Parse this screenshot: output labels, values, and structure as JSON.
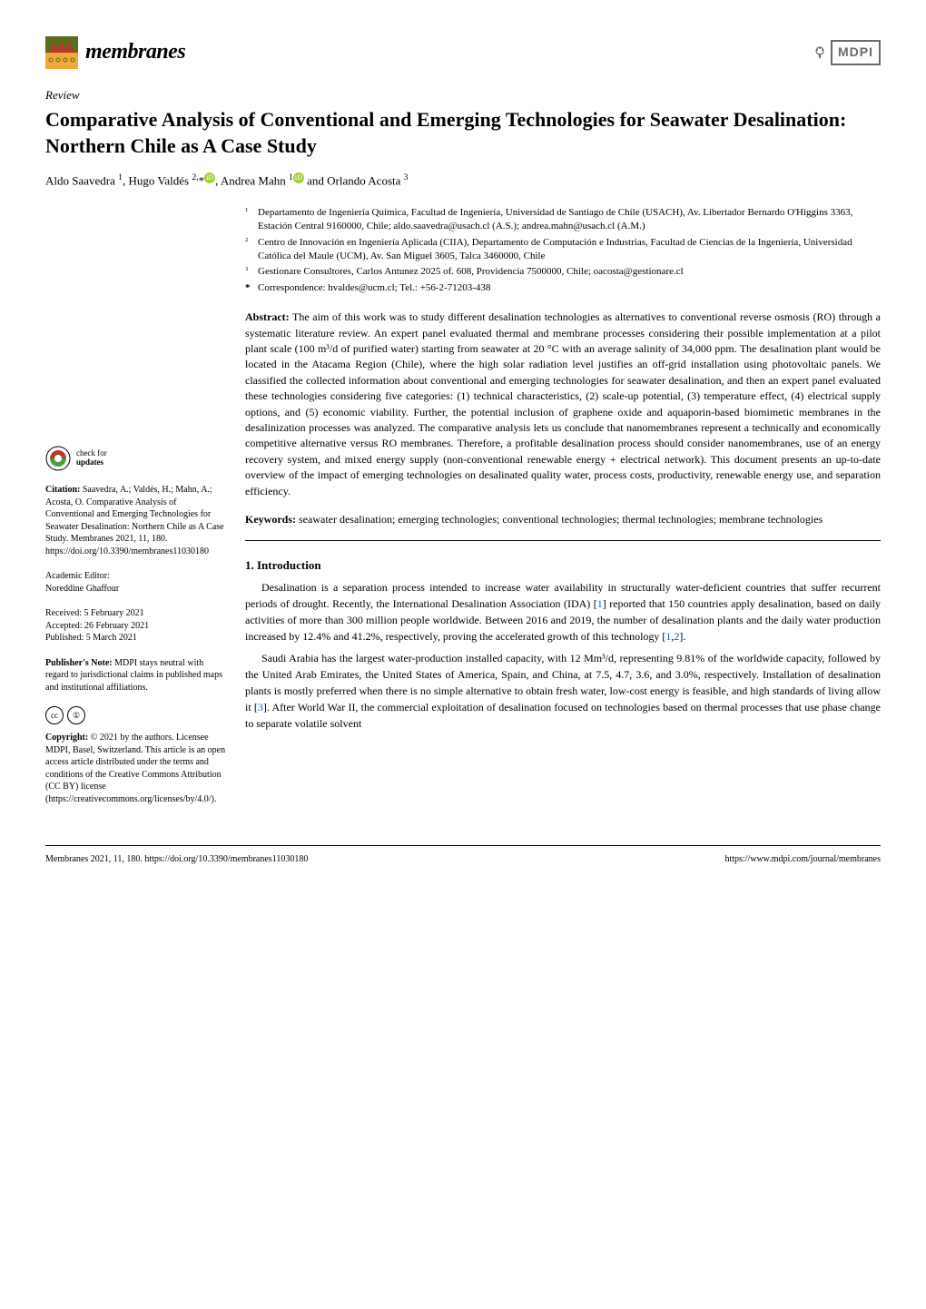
{
  "journal": {
    "name": "membranes"
  },
  "publisher": {
    "name": "MDPI"
  },
  "article_type": "Review",
  "title": "Comparative Analysis of Conventional and Emerging Technologies for Seawater Desalination: Northern Chile as A Case Study",
  "authors_html": "Aldo Saavedra <sup>1</sup>, Hugo Valdés <sup>2,</sup>*<span class='orcid'>iD</span>, Andrea Mahn <sup>1</sup><span class='orcid'>iD</span> and Orlando Acosta <sup>3</sup>",
  "affiliations": [
    {
      "num": "1",
      "text": "Departamento de Ingeniería Química, Facultad de Ingeniería, Universidad de Santiago de Chile (USACH), Av. Libertador Bernardo O'Higgins 3363, Estación Central 9160000, Chile; aldo.saavedra@usach.cl (A.S.); andrea.mahn@usach.cl (A.M.)"
    },
    {
      "num": "2",
      "text": "Centro de Innovación en Ingeniería Aplicada (CIIA), Departamento de Computación e Industrias, Facultad de Ciencias de la Ingeniería, Universidad Católica del Maule (UCM), Av. San Miguel 3605, Talca 3460000, Chile"
    },
    {
      "num": "3",
      "text": "Gestionare Consultores, Carlos Antunez 2025 of. 608, Providencia 7500000, Chile; oacosta@gestionare.cl"
    }
  ],
  "correspondence": {
    "star": "*",
    "text": "Correspondence: hvaldes@ucm.cl; Tel.: +56-2-71203-438"
  },
  "abstract": {
    "label": "Abstract:",
    "text": "The aim of this work was to study different desalination technologies as alternatives to conventional reverse osmosis (RO) through a systematic literature review. An expert panel evaluated thermal and membrane processes considering their possible implementation at a pilot plant scale (100 m³/d of purified water) starting from seawater at 20 °C with an average salinity of 34,000 ppm. The desalination plant would be located in the Atacama Region (Chile), where the high solar radiation level justifies an off-grid installation using photovoltaic panels. We classified the collected information about conventional and emerging technologies for seawater desalination, and then an expert panel evaluated these technologies considering five categories: (1) technical characteristics, (2) scale-up potential, (3) temperature effect, (4) electrical supply options, and (5) economic viability. Further, the potential inclusion of graphene oxide and aquaporin-based biomimetic membranes in the desalinization processes was analyzed. The comparative analysis lets us conclude that nanomembranes represent a technically and economically competitive alternative versus RO membranes. Therefore, a profitable desalination process should consider nanomembranes, use of an energy recovery system, and mixed energy supply (non-conventional renewable energy + electrical network). This document presents an up-to-date overview of the impact of emerging technologies on desalinated quality water, process costs, productivity, renewable energy use, and separation efficiency."
  },
  "keywords": {
    "label": "Keywords:",
    "text": "seawater desalination; emerging technologies; conventional technologies; thermal technologies; membrane technologies"
  },
  "section1": {
    "heading": "1. Introduction",
    "p1": "Desalination is a separation process intended to increase water availability in structurally water-deficient countries that suffer recurrent periods of drought. Recently, the International Desalination Association (IDA) [1] reported that 150 countries apply desalination, based on daily activities of more than 300 million people worldwide. Between 2016 and 2019, the number of desalination plants and the daily water production increased by 12.4% and 41.2%, respectively, proving the accelerated growth of this technology [1,2].",
    "p2": "Saudi Arabia has the largest water-production installed capacity, with 12 Mm³/d, representing 9.81% of the worldwide capacity, followed by the United Arab Emirates, the United States of America, Spain, and China, at 7.5, 4.7, 3.6, and 3.0%, respectively. Installation of desalination plants is mostly preferred when there is no simple alternative to obtain fresh water, low-cost energy is feasible, and high standards of living allow it [3]. After World War II, the commercial exploitation of desalination focused on technologies based on thermal processes that use phase change to separate volatile solvent"
  },
  "sidebar": {
    "check_updates": {
      "line1": "check for",
      "line2": "updates"
    },
    "citation": {
      "label": "Citation:",
      "text": "Saavedra, A.; Valdés, H.; Mahn, A.; Acosta, O. Comparative Analysis of Conventional and Emerging Technologies for Seawater Desalination: Northern Chile as A Case Study. Membranes 2021, 11, 180. https://doi.org/10.3390/membranes11030180"
    },
    "editor": {
      "label": "Academic Editor:",
      "name": "Noreddine Ghaffour"
    },
    "dates": {
      "received": "Received: 5 February 2021",
      "accepted": "Accepted: 26 February 2021",
      "published": "Published: 5 March 2021"
    },
    "publishers_note": {
      "label": "Publisher's Note:",
      "text": "MDPI stays neutral with regard to jurisdictional claims in published maps and institutional affiliations."
    },
    "copyright": {
      "label": "Copyright:",
      "text": "© 2021 by the authors. Licensee MDPI, Basel, Switzerland. This article is an open access article distributed under the terms and conditions of the Creative Commons Attribution (CC BY) license (https://creativecommons.org/licenses/by/4.0/)."
    }
  },
  "footer": {
    "left": "Membranes 2021, 11, 180. https://doi.org/10.3390/membranes11030180",
    "right": "https://www.mdpi.com/journal/membranes"
  },
  "colors": {
    "orcid_green": "#a6ce39",
    "link_blue": "#0066cc",
    "mdpi_grey": "#6b6b6b",
    "logo_olive": "#5a6e1b",
    "logo_orange": "#f4a83a",
    "logo_red": "#b23a2e"
  }
}
